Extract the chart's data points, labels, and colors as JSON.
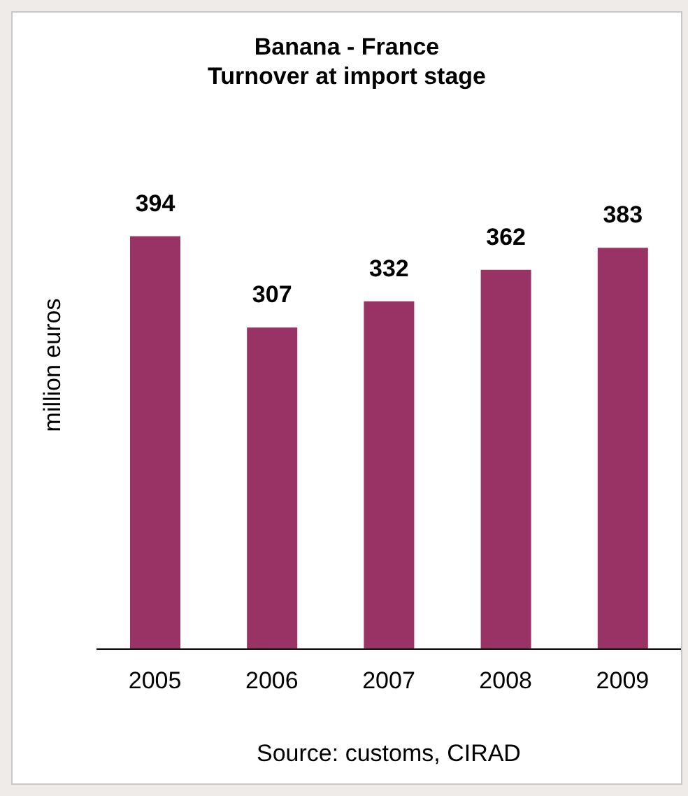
{
  "chart_data": {
    "type": "bar",
    "title": "Banana - France\nTurnover at import stage",
    "ylabel": "million euros",
    "categories": [
      "2005",
      "2006",
      "2007",
      "2008",
      "2009"
    ],
    "values": [
      394,
      307,
      332,
      362,
      383
    ],
    "color": "#993366",
    "data_labels": true,
    "annotations": [
      "Source: customs, CIRAD"
    ]
  }
}
